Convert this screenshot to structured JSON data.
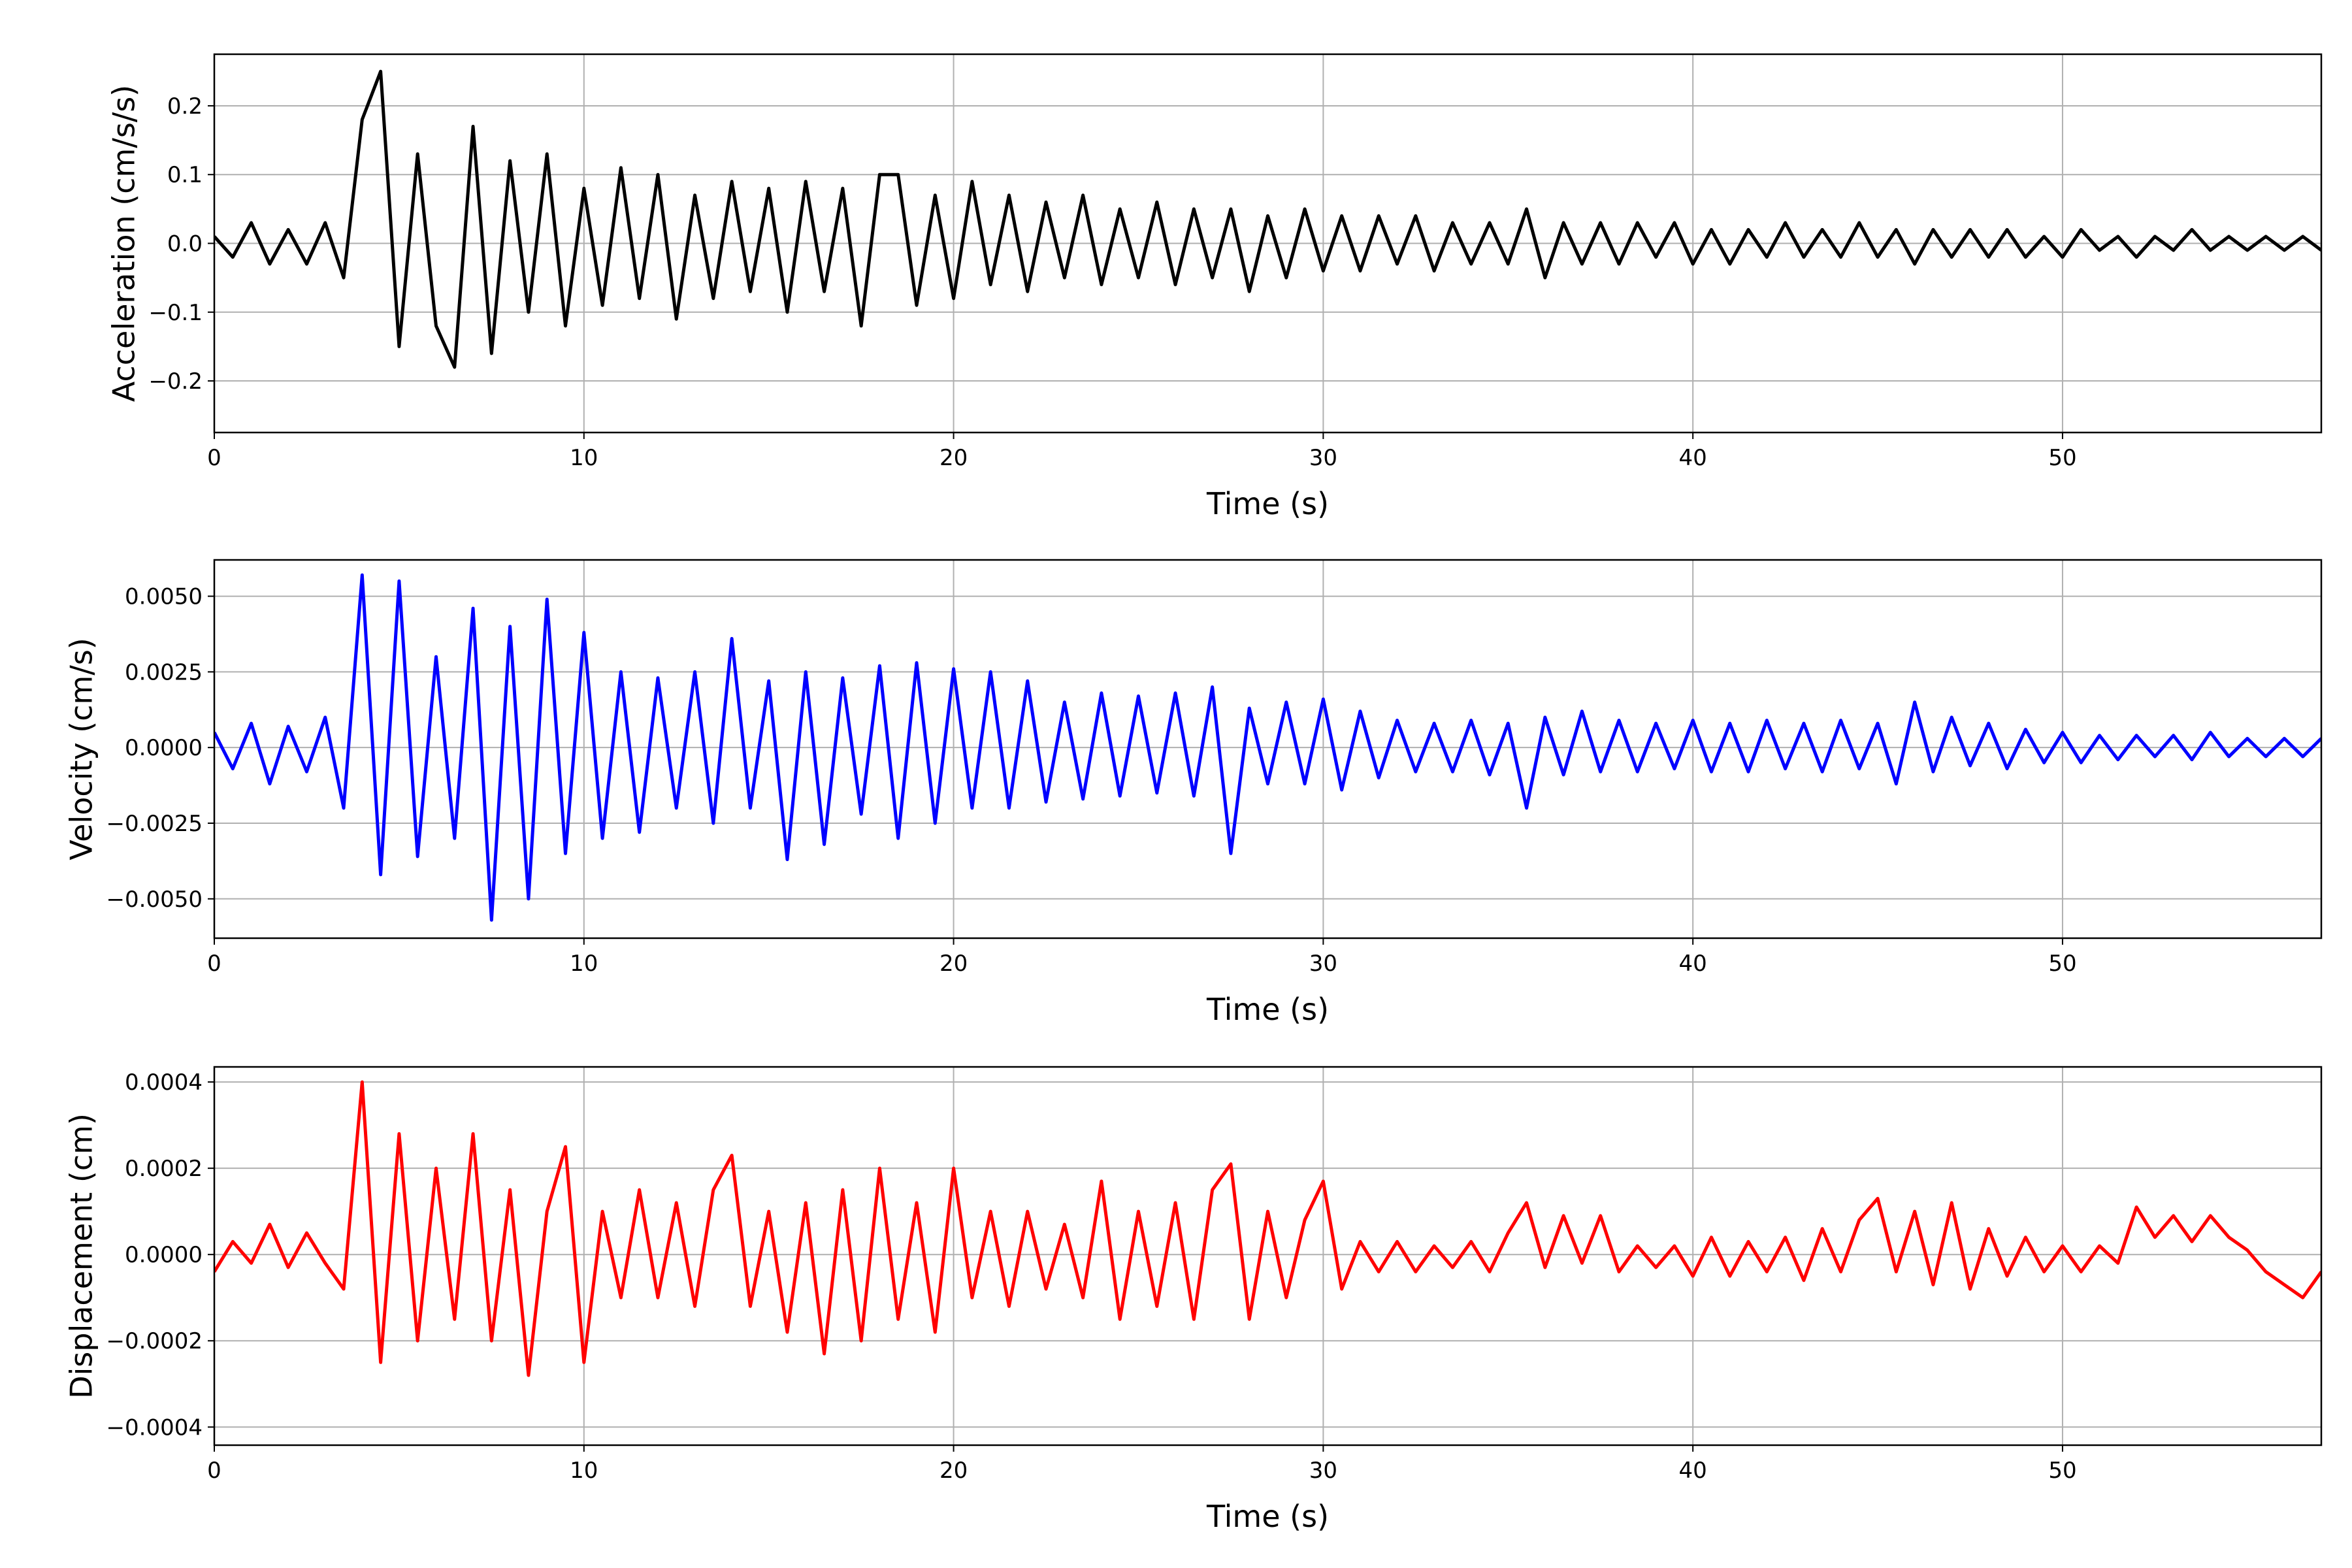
{
  "chart_data": [
    {
      "type": "line",
      "ylabel": "Acceleration (cm/s/s)",
      "xlabel": "Time (s)",
      "color": "#000000",
      "grid": true,
      "xlim": [
        0,
        57
      ],
      "xticks": [
        0,
        10,
        20,
        30,
        40,
        50
      ],
      "ylim": [
        -0.275,
        0.275
      ],
      "yticks": [
        {
          "value": -0.2,
          "label": "−0.2"
        },
        {
          "value": -0.1,
          "label": "−0.1"
        },
        {
          "value": 0,
          "label": "0.0"
        },
        0.1,
        0.2
      ],
      "x": [
        0,
        0.5,
        1,
        1.5,
        2,
        2.5,
        3,
        3.5,
        4,
        4.5,
        5,
        5.5,
        6,
        6.5,
        7,
        7.5,
        8,
        8.5,
        9,
        9.5,
        10,
        10.5,
        11,
        11.5,
        12,
        12.5,
        13,
        13.5,
        14,
        14.5,
        15,
        15.5,
        16,
        16.5,
        17,
        17.5,
        18,
        18.5,
        19,
        19.5,
        20,
        20.5,
        21,
        21.5,
        22,
        22.5,
        23,
        23.5,
        24,
        24.5,
        25,
        25.5,
        26,
        26.5,
        27,
        27.5,
        28,
        28.5,
        29,
        29.5,
        30,
        30.5,
        31,
        31.5,
        32,
        32.5,
        33,
        33.5,
        34,
        34.5,
        35,
        35.5,
        36,
        36.5,
        37,
        37.5,
        38,
        38.5,
        39,
        39.5,
        40,
        40.5,
        41,
        41.5,
        42,
        42.5,
        43,
        43.5,
        44,
        44.5,
        45,
        45.5,
        46,
        46.5,
        47,
        47.5,
        48,
        48.5,
        49,
        49.5,
        50,
        50.5,
        51,
        51.5,
        52,
        52.5,
        53,
        53.5,
        54,
        54.5,
        55,
        55.5,
        56,
        56.5,
        57
      ],
      "values": [
        0.01,
        -0.02,
        0.03,
        -0.03,
        0.02,
        -0.03,
        0.03,
        -0.05,
        0.18,
        0.25,
        -0.15,
        0.13,
        -0.12,
        -0.18,
        0.17,
        -0.16,
        0.12,
        -0.1,
        0.13,
        -0.12,
        0.08,
        -0.09,
        0.11,
        -0.08,
        0.1,
        -0.11,
        0.07,
        -0.08,
        0.09,
        -0.07,
        0.08,
        -0.1,
        0.09,
        -0.07,
        0.08,
        -0.12,
        0.1,
        0.1,
        -0.09,
        0.07,
        -0.08,
        0.09,
        -0.06,
        0.07,
        -0.07,
        0.06,
        -0.05,
        0.07,
        -0.06,
        0.05,
        -0.05,
        0.06,
        -0.06,
        0.05,
        -0.05,
        0.05,
        -0.07,
        0.04,
        -0.05,
        0.05,
        -0.04,
        0.04,
        -0.04,
        0.04,
        -0.03,
        0.04,
        -0.04,
        0.03,
        -0.03,
        0.03,
        -0.03,
        0.05,
        -0.05,
        0.03,
        -0.03,
        0.03,
        -0.03,
        0.03,
        -0.02,
        0.03,
        -0.03,
        0.02,
        -0.03,
        0.02,
        -0.02,
        0.03,
        -0.02,
        0.02,
        -0.02,
        0.03,
        -0.02,
        0.02,
        -0.03,
        0.02,
        -0.02,
        0.02,
        -0.02,
        0.02,
        -0.02,
        0.01,
        -0.02,
        0.02,
        -0.01,
        0.01,
        -0.02,
        0.01,
        -0.01,
        0.02,
        -0.01,
        0.01,
        -0.01,
        0.01,
        -0.01,
        0.01,
        -0.01
      ]
    },
    {
      "type": "line",
      "ylabel": "Velocity (cm/s)",
      "xlabel": "Time (s)",
      "color": "#0000ff",
      "grid": true,
      "xlim": [
        0,
        57
      ],
      "xticks": [
        0,
        10,
        20,
        30,
        40,
        50
      ],
      "ylim": [
        -0.0063,
        0.0062
      ],
      "yticks": [
        {
          "value": -0.005,
          "label": "−0.0050"
        },
        {
          "value": -0.0025,
          "label": "−0.0025"
        },
        {
          "value": 0,
          "label": "0.0000"
        },
        {
          "value": 0.0025,
          "label": "0.0025"
        },
        {
          "value": 0.005,
          "label": "0.0050"
        }
      ],
      "x": [
        0,
        0.5,
        1,
        1.5,
        2,
        2.5,
        3,
        3.5,
        4,
        4.5,
        5,
        5.5,
        6,
        6.5,
        7,
        7.5,
        8,
        8.5,
        9,
        9.5,
        10,
        10.5,
        11,
        11.5,
        12,
        12.5,
        13,
        13.5,
        14,
        14.5,
        15,
        15.5,
        16,
        16.5,
        17,
        17.5,
        18,
        18.5,
        19,
        19.5,
        20,
        20.5,
        21,
        21.5,
        22,
        22.5,
        23,
        23.5,
        24,
        24.5,
        25,
        25.5,
        26,
        26.5,
        27,
        27.5,
        28,
        28.5,
        29,
        29.5,
        30,
        30.5,
        31,
        31.5,
        32,
        32.5,
        33,
        33.5,
        34,
        34.5,
        35,
        35.5,
        36,
        36.5,
        37,
        37.5,
        38,
        38.5,
        39,
        39.5,
        40,
        40.5,
        41,
        41.5,
        42,
        42.5,
        43,
        43.5,
        44,
        44.5,
        45,
        45.5,
        46,
        46.5,
        47,
        47.5,
        48,
        48.5,
        49,
        49.5,
        50,
        50.5,
        51,
        51.5,
        52,
        52.5,
        53,
        53.5,
        54,
        54.5,
        55,
        55.5,
        56,
        56.5,
        57
      ],
      "values": [
        0.0005,
        -0.0007,
        0.0008,
        -0.0012,
        0.0007,
        -0.0008,
        0.001,
        -0.002,
        0.0057,
        -0.0042,
        0.0055,
        -0.0036,
        0.003,
        -0.003,
        0.0046,
        -0.0057,
        0.004,
        -0.005,
        0.0049,
        -0.0035,
        0.0038,
        -0.003,
        0.0025,
        -0.0028,
        0.0023,
        -0.002,
        0.0025,
        -0.0025,
        0.0036,
        -0.002,
        0.0022,
        -0.0037,
        0.0025,
        -0.0032,
        0.0023,
        -0.0022,
        0.0027,
        -0.003,
        0.0028,
        -0.0025,
        0.0026,
        -0.002,
        0.0025,
        -0.002,
        0.0022,
        -0.0018,
        0.0015,
        -0.0017,
        0.0018,
        -0.0016,
        0.0017,
        -0.0015,
        0.0018,
        -0.0016,
        0.002,
        -0.0035,
        0.0013,
        -0.0012,
        0.0015,
        -0.0012,
        0.0016,
        -0.0014,
        0.0012,
        -0.001,
        0.0009,
        -0.0008,
        0.0008,
        -0.0008,
        0.0009,
        -0.0009,
        0.0008,
        -0.002,
        0.001,
        -0.0009,
        0.0012,
        -0.0008,
        0.0009,
        -0.0008,
        0.0008,
        -0.0007,
        0.0009,
        -0.0008,
        0.0008,
        -0.0008,
        0.0009,
        -0.0007,
        0.0008,
        -0.0008,
        0.0009,
        -0.0007,
        0.0008,
        -0.0012,
        0.0015,
        -0.0008,
        0.001,
        -0.0006,
        0.0008,
        -0.0007,
        0.0006,
        -0.0005,
        0.0005,
        -0.0005,
        0.0004,
        -0.0004,
        0.0004,
        -0.0003,
        0.0004,
        -0.0004,
        0.0005,
        -0.0003,
        0.0003,
        -0.0003,
        0.0003,
        -0.0003,
        0.0003
      ]
    },
    {
      "type": "line",
      "ylabel": "Displacement (cm)",
      "xlabel": "Time (s)",
      "color": "#ff0000",
      "grid": true,
      "xlim": [
        0,
        57
      ],
      "xticks": [
        0,
        10,
        20,
        30,
        40,
        50
      ],
      "ylim": [
        -0.000442,
        0.000435
      ],
      "yticks": [
        {
          "value": -0.0004,
          "label": "−0.0004"
        },
        {
          "value": -0.0002,
          "label": "−0.0002"
        },
        {
          "value": 0,
          "label": "0.0000"
        },
        0.0002,
        0.0004
      ],
      "x": [
        0,
        0.5,
        1,
        1.5,
        2,
        2.5,
        3,
        3.5,
        4,
        4.5,
        5,
        5.5,
        6,
        6.5,
        7,
        7.5,
        8,
        8.5,
        9,
        9.5,
        10,
        10.5,
        11,
        11.5,
        12,
        12.5,
        13,
        13.5,
        14,
        14.5,
        15,
        15.5,
        16,
        16.5,
        17,
        17.5,
        18,
        18.5,
        19,
        19.5,
        20,
        20.5,
        21,
        21.5,
        22,
        22.5,
        23,
        23.5,
        24,
        24.5,
        25,
        25.5,
        26,
        26.5,
        27,
        27.5,
        28,
        28.5,
        29,
        29.5,
        30,
        30.5,
        31,
        31.5,
        32,
        32.5,
        33,
        33.5,
        34,
        34.5,
        35,
        35.5,
        36,
        36.5,
        37,
        37.5,
        38,
        38.5,
        39,
        39.5,
        40,
        40.5,
        41,
        41.5,
        42,
        42.5,
        43,
        43.5,
        44,
        44.5,
        45,
        45.5,
        46,
        46.5,
        47,
        47.5,
        48,
        48.5,
        49,
        49.5,
        50,
        50.5,
        51,
        51.5,
        52,
        52.5,
        53,
        53.5,
        54,
        54.5,
        55,
        55.5,
        56,
        56.5,
        57
      ],
      "values": [
        -4e-05,
        3e-05,
        -2e-05,
        7e-05,
        -3e-05,
        5e-05,
        -2e-05,
        -8e-05,
        0.0004,
        -0.00025,
        0.00028,
        -0.0002,
        0.0002,
        -0.00015,
        0.00028,
        -0.0002,
        0.00015,
        -0.00028,
        0.0001,
        0.00025,
        -0.00025,
        0.0001,
        -0.0001,
        0.00015,
        -0.0001,
        0.00012,
        -0.00012,
        0.00015,
        0.00023,
        -0.00012,
        0.0001,
        -0.00018,
        0.00012,
        -0.00023,
        0.00015,
        -0.0002,
        0.0002,
        -0.00015,
        0.00012,
        -0.00018,
        0.0002,
        -0.0001,
        0.0001,
        -0.00012,
        0.0001,
        -8e-05,
        7e-05,
        -0.0001,
        0.00017,
        -0.00015,
        0.0001,
        -0.00012,
        0.00012,
        -0.00015,
        0.00015,
        0.00021,
        -0.00015,
        0.0001,
        -0.0001,
        8e-05,
        0.00017,
        -8e-05,
        3e-05,
        -4e-05,
        3e-05,
        -4e-05,
        2e-05,
        -3e-05,
        3e-05,
        -4e-05,
        5e-05,
        0.00012,
        -3e-05,
        9e-05,
        -2e-05,
        9e-05,
        -4e-05,
        2e-05,
        -3e-05,
        2e-05,
        -5e-05,
        4e-05,
        -5e-05,
        3e-05,
        -4e-05,
        4e-05,
        -6e-05,
        6e-05,
        -4e-05,
        8e-05,
        0.00013,
        -4e-05,
        0.0001,
        -7e-05,
        0.00012,
        -8e-05,
        6e-05,
        -5e-05,
        4e-05,
        -4e-05,
        2e-05,
        -4e-05,
        2e-05,
        -2e-05,
        0.00011,
        4e-05,
        9e-05,
        3e-05,
        9e-05,
        4e-05,
        1e-05,
        -4e-05,
        -7e-05,
        -0.0001,
        -4e-05
      ]
    }
  ]
}
